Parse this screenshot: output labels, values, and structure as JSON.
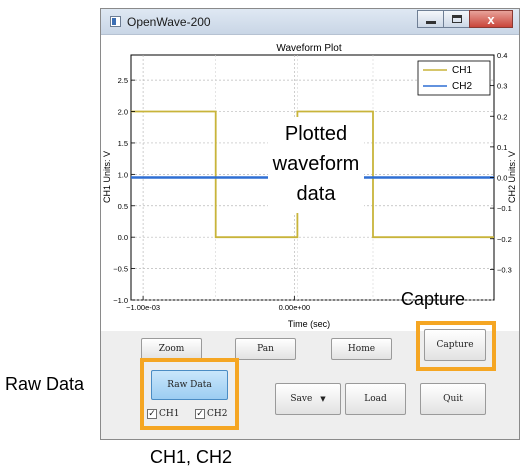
{
  "window": {
    "title": "OpenWave-200",
    "close_glyph": "x",
    "icons": [
      "app-icon",
      "minimize-icon",
      "maximize-icon",
      "close-icon"
    ]
  },
  "plot": {
    "title": "Waveform Plot",
    "xlabel": "Time (sec)",
    "ylabel_left": "CH1 Units: V",
    "ylabel_right": "CH2 Units: V",
    "left_ticks": [
      "2.5",
      "2.0",
      "1.5",
      "1.0",
      "0.5",
      "0.0",
      "−0.5",
      "−1.0"
    ],
    "right_ticks": [
      "0.4",
      "0.3",
      "0.2",
      "0.1",
      "0.0",
      "−0.1",
      "−0.2",
      "−0.3"
    ],
    "x_ticks": [
      "−1.00e-03",
      "0.00e+00"
    ],
    "legend": [
      {
        "name": "CH1",
        "color": "#c8b43a"
      },
      {
        "name": "CH2",
        "color": "#2f6fd4"
      }
    ],
    "annotation_lines": [
      "Plotted",
      "waveform",
      "data"
    ]
  },
  "chart_data": {
    "type": "line",
    "title": "Waveform Plot",
    "xlabel": "Time (sec)",
    "ylabel": "CH1 Units: V",
    "ylabel_right": "CH2 Units: V",
    "xlim": [
      -0.00108,
      0.00132
    ],
    "ylim": [
      -1.0,
      2.9
    ],
    "ylim_right": [
      -0.4,
      0.4
    ],
    "grid": true,
    "legend": "top-right",
    "series": [
      {
        "name": "CH1",
        "axis": "left",
        "color": "#c8b43a",
        "x": [
          -0.00108,
          -0.00052,
          -0.00052,
          2e-05,
          2e-05,
          0.00052,
          0.00052,
          0.00132
        ],
        "y": [
          2.0,
          2.0,
          0.0,
          0.0,
          2.0,
          2.0,
          0.0,
          0.0
        ]
      },
      {
        "name": "CH2",
        "axis": "right",
        "color": "#2f6fd4",
        "x": [
          -0.00108,
          0.00132
        ],
        "y": [
          0.0,
          0.0
        ]
      }
    ]
  },
  "toolbar": {
    "zoom": "Zoom",
    "pan": "Pan",
    "home": "Home",
    "capture": "Capture",
    "raw_data": "Raw Data",
    "save": "Save",
    "save_arrow": "▼",
    "load": "Load",
    "quit": "Quit",
    "ch1": "CH1",
    "ch2": "CH2",
    "check": "✓"
  },
  "callouts": {
    "capture": "Capture",
    "raw_data": "Raw Data",
    "channels": "CH1, CH2",
    "color": "#f5a623"
  }
}
